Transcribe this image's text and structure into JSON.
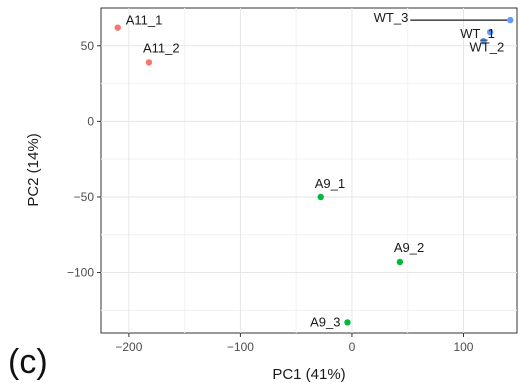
{
  "chart_data": {
    "type": "scatter",
    "xlabel": "PC1 (41%)",
    "ylabel": "PC2 (14%)",
    "xlim": [
      -225,
      148
    ],
    "ylim": [
      -140,
      75
    ],
    "xticks": [
      -200,
      -100,
      0,
      100
    ],
    "yticks": [
      50,
      0,
      -50,
      -100
    ],
    "xtick_labels": [
      "−200",
      "−100",
      "0",
      "100"
    ],
    "ytick_labels": [
      "50",
      "0",
      "−50",
      "−100"
    ],
    "grid": true,
    "points": [
      {
        "label": "A11_1",
        "x": -210,
        "y": 62,
        "color": "#f8766d"
      },
      {
        "label": "A11_2",
        "x": -182,
        "y": 39,
        "color": "#f8766d"
      },
      {
        "label": "A9_1",
        "x": -28,
        "y": -50,
        "color": "#00ba38"
      },
      {
        "label": "A9_2",
        "x": 43,
        "y": -93,
        "color": "#00ba38"
      },
      {
        "label": "A9_3",
        "x": -4,
        "y": -133,
        "color": "#00ba38"
      },
      {
        "label": "WT_3",
        "x": 142,
        "y": 67,
        "color": "#619cff"
      },
      {
        "label": "WT_1",
        "x": 124,
        "y": 59,
        "color": "#619cff"
      },
      {
        "label": "WT_2",
        "x": 118,
        "y": 53,
        "color": "#619cff"
      }
    ]
  },
  "panel_label": "(c)"
}
